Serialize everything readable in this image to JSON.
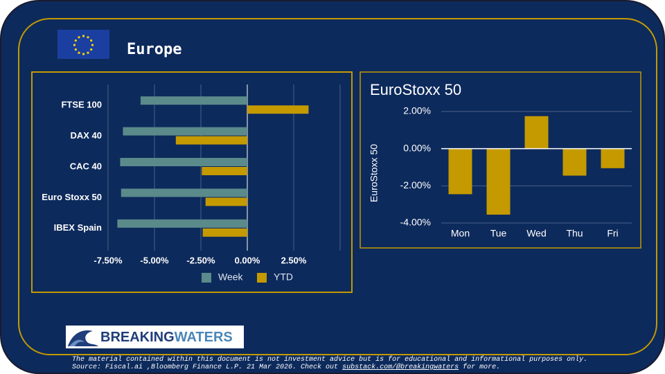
{
  "header": {
    "title": "Europe"
  },
  "logo": {
    "part1": "BREAKING",
    "part2": "WATERS"
  },
  "footer": {
    "text": "The material contained within this document is not investment advice but is for educational and informational purposes only. Source: Fiscal.ai ,Bloomberg Finance L.P. 21 Mar 2026. Check out",
    "link": "substack.com/@breakingwaters",
    "text_after": "for more."
  },
  "chart_data": [
    {
      "type": "bar",
      "orientation": "horizontal",
      "categories": [
        "FTSE 100",
        "DAX 40",
        "CAC 40",
        "Euro Stoxx 50",
        "IBEX  Spain"
      ],
      "series": [
        {
          "name": "Week",
          "color": "#5b8a8a",
          "values": [
            -5.75,
            -6.7,
            -6.85,
            -6.8,
            -7.0
          ]
        },
        {
          "name": "YTD",
          "color": "#c49a00",
          "values": [
            3.3,
            -3.85,
            -2.45,
            -2.25,
            -2.4
          ]
        }
      ],
      "xlim": [
        -7.5,
        5
      ],
      "xticks": [
        {
          "value": -7.5,
          "label": "-7.50%"
        },
        {
          "value": -5,
          "label": "-5.00%"
        },
        {
          "value": -2.5,
          "label": "-2.50%"
        },
        {
          "value": 0,
          "label": "0.00%"
        },
        {
          "value": 2.5,
          "label": "2.50%"
        }
      ],
      "grid": true,
      "legend": "bottom"
    },
    {
      "type": "bar",
      "orientation": "vertical",
      "title": "EuroStoxx 50",
      "y_label": "EuroStoxx 50",
      "categories": [
        "Mon",
        "Tue",
        "Wed",
        "Thu",
        "Fri"
      ],
      "values": [
        -2.45,
        -3.55,
        1.75,
        -1.45,
        -1.05
      ],
      "color": "#c49a00",
      "ylim": [
        -4,
        2
      ],
      "yticks": [
        {
          "value": -4,
          "label": "-4.00%"
        },
        {
          "value": -2,
          "label": "-2.00%"
        },
        {
          "value": 0,
          "label": "0.00%"
        },
        {
          "value": 2,
          "label": "2.00%"
        }
      ],
      "grid": true
    }
  ]
}
